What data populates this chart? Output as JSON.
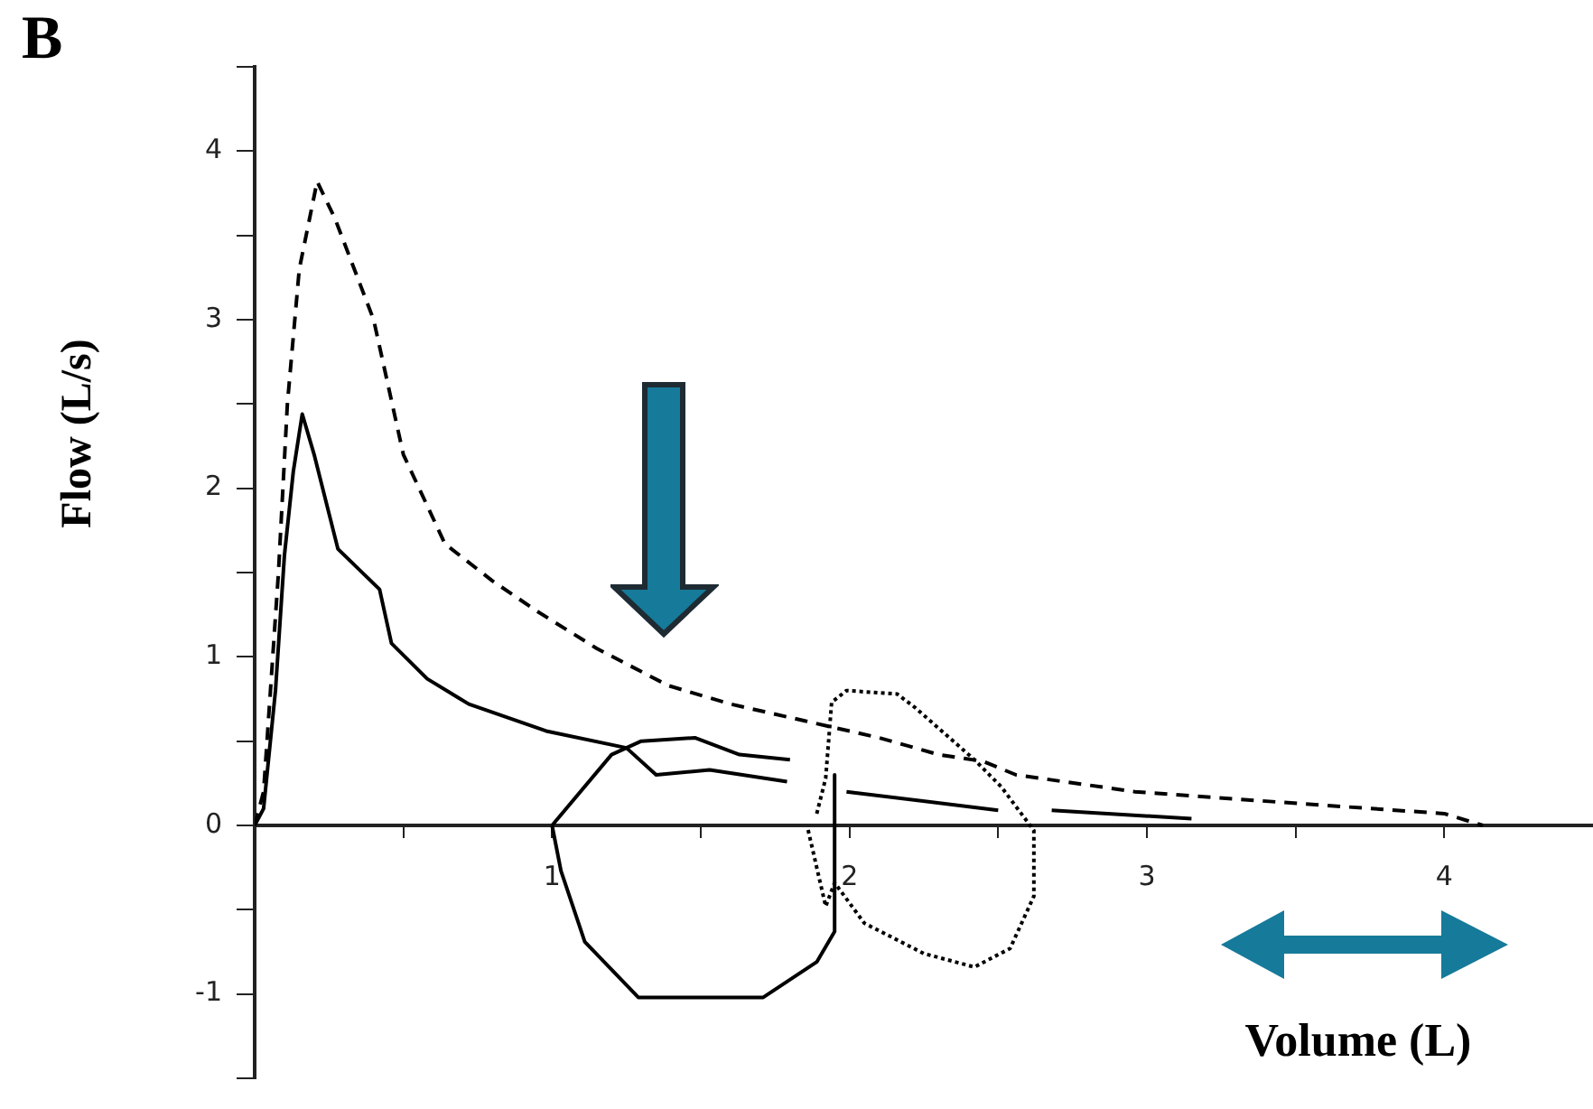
{
  "chart_data": {
    "type": "line",
    "title": "B",
    "xlabel": "Volume (L)",
    "ylabel": "Flow (L/s)",
    "xlim": [
      0,
      4.5
    ],
    "ylim": [
      -1.5,
      4.5
    ],
    "xticks": [
      {
        "value": 0.5,
        "label": null
      },
      1,
      {
        "value": 1.5,
        "label": null
      },
      2,
      {
        "value": 2.5,
        "label": null
      },
      3,
      {
        "value": 3.5,
        "label": null
      },
      4
    ],
    "yticks": [
      {
        "value": -1.5,
        "label": null
      },
      -1,
      {
        "value": -0.5,
        "label": null
      },
      0,
      {
        "value": 0.5,
        "label": null
      },
      1,
      {
        "value": 1.5,
        "label": null
      },
      2,
      {
        "value": 2.5,
        "label": null
      },
      3,
      {
        "value": 3.5,
        "label": null
      },
      4,
      {
        "value": 4.5,
        "label": null
      }
    ],
    "grid": false,
    "legend": false,
    "marker": "none",
    "series": [
      {
        "color": "#000000",
        "line_style": "dashed",
        "x": [
          0,
          0.03,
          0.08,
          0.11,
          0.15,
          0.21,
          0.27,
          0.4,
          0.5,
          0.64,
          0.8,
          0.95,
          1.15,
          1.39,
          1.6,
          1.85,
          2.1,
          2.3,
          2.45,
          2.56,
          2.96,
          3.51,
          4.0,
          4.13
        ],
        "values": [
          0,
          0.2,
          1.5,
          2.5,
          3.3,
          3.82,
          3.6,
          3.0,
          2.2,
          1.67,
          1.45,
          1.27,
          1.05,
          0.83,
          0.72,
          0.62,
          0.52,
          0.42,
          0.38,
          0.3,
          0.2,
          0.13,
          0.07,
          0
        ]
      },
      {
        "color": "#000000",
        "line_style": "solid",
        "x": [
          0,
          0.03,
          0.07,
          0.1,
          0.13,
          0.16,
          0.2,
          0.28,
          0.42,
          0.46,
          0.58,
          0.72,
          0.98,
          1.25,
          1.35,
          1.53,
          1.79,
          1.87,
          1.99,
          2.5,
          2.6,
          2.68,
          3.15
        ],
        "values": [
          0,
          0.1,
          0.8,
          1.6,
          2.1,
          2.44,
          2.2,
          1.64,
          1.4,
          1.08,
          0.87,
          0.72,
          0.56,
          0.46,
          0.3,
          0.33,
          0.26,
          null,
          0.2,
          0.09,
          null,
          0.09,
          0.04
        ]
      },
      {
        "color": "#000000",
        "line_style": "solid",
        "x": [
          1.0,
          1.2,
          1.3,
          1.48,
          1.63,
          1.8,
          1.87,
          1.95,
          1.95,
          1.89,
          1.71,
          1.29,
          1.11,
          1.03,
          1.0
        ],
        "values": [
          0,
          0.42,
          0.5,
          0.52,
          0.42,
          0.39,
          null,
          0.3,
          -0.63,
          -0.81,
          -1.02,
          -1.02,
          -0.69,
          -0.27,
          0
        ]
      },
      {
        "color": "#000000",
        "line_style": "dotted",
        "x": [
          1.89,
          1.92,
          1.94,
          1.99,
          2.16,
          2.22,
          2.42,
          2.51,
          2.62,
          2.62,
          2.54,
          2.42,
          2.25,
          2.05,
          1.95,
          1.92,
          1.86
        ],
        "values": [
          0.07,
          0.28,
          0.73,
          0.8,
          0.78,
          0.7,
          0.39,
          0.23,
          -0.03,
          -0.42,
          -0.73,
          -0.84,
          -0.76,
          -0.58,
          -0.34,
          -0.48,
          -0.02
        ]
      }
    ]
  }
}
